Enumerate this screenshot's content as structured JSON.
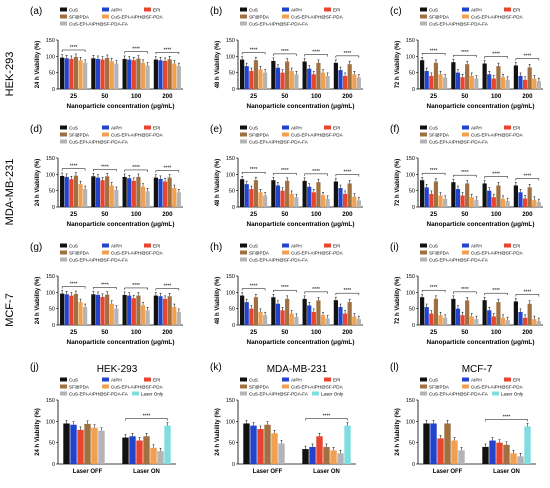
{
  "row_labels": [
    "HEK-293",
    "MDA-MB-231",
    "MCF-7"
  ],
  "colors": {
    "CuS": "#111111",
    "AIPH": "#2244cc",
    "EPI": "#e8442e",
    "SF@PDA": "#a07040",
    "CuS-EPI-AIPH@SF-PDA": "#f0a050",
    "CuS-EPI-AIPH@SF-PDA-FA": "#b4b4b4",
    "Laser Only": "#7fdde0"
  },
  "legend_top": [
    "CuS",
    "AIPH",
    "EPI",
    "SF@PDA",
    "CuS-EPI-AIPH@SF-PDA",
    "CuS-EPI-AIPH@SF-PDA-FA"
  ],
  "legend_bottom": [
    "CuS",
    "AIPH",
    "EPI",
    "SF@PDA",
    "CuS-EPI-AIPH@SF-PDA",
    "CuS-EPI-AIPH@SF-PDA-FA",
    "Laser Only"
  ],
  "chart_data": [
    {
      "panel": "(a)",
      "type": "bar",
      "ylabel": "24 h Viability (%)",
      "xlabel": "Nanoparticle concentration (μg/mL)",
      "ylim": [
        0,
        150
      ],
      "yticks": [
        0,
        50,
        100,
        150
      ],
      "categories": [
        "25",
        "50",
        "100",
        "200"
      ],
      "series": [
        {
          "name": "CuS",
          "values": [
            96,
            94,
            92,
            90
          ]
        },
        {
          "name": "AIPH",
          "values": [
            94,
            92,
            90,
            88
          ]
        },
        {
          "name": "EPI",
          "values": [
            92,
            90,
            88,
            86
          ]
        },
        {
          "name": "SF@PDA",
          "values": [
            98,
            95,
            93,
            91
          ]
        },
        {
          "name": "CuS-EPI-AIPH@SF-PDA",
          "values": [
            88,
            85,
            80,
            78
          ]
        },
        {
          "name": "CuS-EPI-AIPH@SF-PDA-FA",
          "values": [
            80,
            78,
            72,
            70
          ]
        }
      ],
      "sig": [
        [
          0,
          "****"
        ],
        [
          2,
          "****"
        ],
        [
          3,
          "****"
        ]
      ]
    },
    {
      "panel": "(b)",
      "type": "bar",
      "ylabel": "48 h Viability (%)",
      "xlabel": "Nanoparticle concentration (μg/mL)",
      "ylim": [
        0,
        150
      ],
      "yticks": [
        0,
        50,
        100,
        150
      ],
      "categories": [
        "25",
        "50",
        "100",
        "200"
      ],
      "series": [
        {
          "name": "CuS",
          "values": [
            90,
            86,
            84,
            80
          ]
        },
        {
          "name": "AIPH",
          "values": [
            70,
            65,
            62,
            58
          ]
        },
        {
          "name": "EPI",
          "values": [
            55,
            50,
            45,
            40
          ]
        },
        {
          "name": "SF@PDA",
          "values": [
            88,
            84,
            80,
            76
          ]
        },
        {
          "name": "CuS-EPI-AIPH@SF-PDA",
          "values": [
            60,
            55,
            50,
            45
          ]
        },
        {
          "name": "CuS-EPI-AIPH@SF-PDA-FA",
          "values": [
            50,
            45,
            40,
            35
          ]
        }
      ],
      "sig": [
        [
          0,
          "****"
        ],
        [
          1,
          "****"
        ],
        [
          2,
          "****"
        ],
        [
          3,
          "****"
        ]
      ]
    },
    {
      "panel": "(c)",
      "type": "bar",
      "ylabel": "72 h Viability (%)",
      "xlabel": "Nanoparticle concentration (μg/mL)",
      "ylim": [
        0,
        150
      ],
      "yticks": [
        0,
        50,
        100,
        150
      ],
      "categories": [
        "25",
        "50",
        "100",
        "200"
      ],
      "series": [
        {
          "name": "CuS",
          "values": [
            88,
            82,
            78,
            72
          ]
        },
        {
          "name": "AIPH",
          "values": [
            55,
            50,
            45,
            40
          ]
        },
        {
          "name": "EPI",
          "values": [
            40,
            36,
            32,
            28
          ]
        },
        {
          "name": "SF@PDA",
          "values": [
            80,
            76,
            70,
            66
          ]
        },
        {
          "name": "CuS-EPI-AIPH@SF-PDA",
          "values": [
            45,
            40,
            36,
            32
          ]
        },
        {
          "name": "CuS-EPI-AIPH@SF-PDA-FA",
          "values": [
            35,
            32,
            28,
            24
          ]
        }
      ],
      "sig": [
        [
          0,
          "****"
        ],
        [
          1,
          "****"
        ],
        [
          2,
          "****"
        ],
        [
          3,
          "****"
        ]
      ]
    },
    {
      "panel": "(d)",
      "type": "bar",
      "ylabel": "24 h Viability (%)",
      "xlabel": "Nanoparticle concentration (μg/mL)",
      "ylim": [
        0,
        150
      ],
      "yticks": [
        0,
        50,
        100,
        150
      ],
      "categories": [
        "25",
        "50",
        "100",
        "200"
      ],
      "series": [
        {
          "name": "CuS",
          "values": [
            95,
            94,
            92,
            90
          ]
        },
        {
          "name": "AIPH",
          "values": [
            92,
            90,
            88,
            86
          ]
        },
        {
          "name": "EPI",
          "values": [
            85,
            82,
            80,
            78
          ]
        },
        {
          "name": "SF@PDA",
          "values": [
            96,
            94,
            92,
            90
          ]
        },
        {
          "name": "CuS-EPI-AIPH@SF-PDA",
          "values": [
            70,
            66,
            62,
            58
          ]
        },
        {
          "name": "CuS-EPI-AIPH@SF-PDA-FA",
          "values": [
            55,
            52,
            48,
            45
          ]
        }
      ],
      "sig": [
        [
          0,
          "****"
        ],
        [
          1,
          "****"
        ],
        [
          2,
          "****"
        ],
        [
          3,
          "****"
        ]
      ]
    },
    {
      "panel": "(e)",
      "type": "bar",
      "ylabel": "48 h Viability (%)",
      "xlabel": "Nanoparticle concentration (μg/mL)",
      "ylim": [
        0,
        150
      ],
      "yticks": [
        0,
        50,
        100,
        150
      ],
      "categories": [
        "25",
        "50",
        "100",
        "200"
      ],
      "series": [
        {
          "name": "CuS",
          "values": [
            85,
            82,
            80,
            78
          ]
        },
        {
          "name": "AIPH",
          "values": [
            70,
            66,
            62,
            58
          ]
        },
        {
          "name": "EPI",
          "values": [
            55,
            50,
            45,
            40
          ]
        },
        {
          "name": "SF@PDA",
          "values": [
            82,
            80,
            76,
            72
          ]
        },
        {
          "name": "CuS-EPI-AIPH@SF-PDA",
          "values": [
            45,
            40,
            36,
            32
          ]
        },
        {
          "name": "CuS-EPI-AIPH@SF-PDA-FA",
          "values": [
            35,
            30,
            25,
            20
          ]
        }
      ],
      "sig": [
        [
          0,
          "****"
        ],
        [
          1,
          "****"
        ],
        [
          2,
          "****"
        ],
        [
          3,
          "****"
        ]
      ]
    },
    {
      "panel": "(f)",
      "type": "bar",
      "ylabel": "72 h Viability (%)",
      "xlabel": "Nanoparticle concentration (μg/mL)",
      "ylim": [
        0,
        150
      ],
      "yticks": [
        0,
        50,
        100,
        150
      ],
      "categories": [
        "25",
        "50",
        "100",
        "200"
      ],
      "series": [
        {
          "name": "CuS",
          "values": [
            82,
            76,
            72,
            66
          ]
        },
        {
          "name": "AIPH",
          "values": [
            60,
            55,
            50,
            45
          ]
        },
        {
          "name": "EPI",
          "values": [
            40,
            35,
            30,
            26
          ]
        },
        {
          "name": "SF@PDA",
          "values": [
            78,
            72,
            66,
            60
          ]
        },
        {
          "name": "CuS-EPI-AIPH@SF-PDA",
          "values": [
            35,
            30,
            25,
            22
          ]
        },
        {
          "name": "CuS-EPI-AIPH@SF-PDA-FA",
          "values": [
            25,
            22,
            18,
            15
          ]
        }
      ],
      "sig": [
        [
          0,
          "****"
        ],
        [
          1,
          "****"
        ],
        [
          2,
          "****"
        ],
        [
          3,
          "****"
        ]
      ]
    },
    {
      "panel": "(g)",
      "type": "bar",
      "ylabel": "24 h Viability (%)",
      "xlabel": "Nanoparticle concentration (μg/mL)",
      "ylim": [
        0,
        150
      ],
      "yticks": [
        0,
        50,
        100,
        150
      ],
      "categories": [
        "25",
        "50",
        "100",
        "200"
      ],
      "series": [
        {
          "name": "CuS",
          "values": [
            96,
            94,
            92,
            90
          ]
        },
        {
          "name": "AIPH",
          "values": [
            94,
            92,
            90,
            88
          ]
        },
        {
          "name": "EPI",
          "values": [
            90,
            86,
            82,
            80
          ]
        },
        {
          "name": "SF@PDA",
          "values": [
            95,
            93,
            90,
            88
          ]
        },
        {
          "name": "CuS-EPI-AIPH@SF-PDA",
          "values": [
            70,
            65,
            60,
            55
          ]
        },
        {
          "name": "CuS-EPI-AIPH@SF-PDA-FA",
          "values": [
            55,
            50,
            45,
            40
          ]
        }
      ],
      "sig": [
        [
          0,
          "****"
        ],
        [
          1,
          "****"
        ],
        [
          2,
          "****"
        ],
        [
          3,
          "****"
        ]
      ]
    },
    {
      "panel": "(h)",
      "type": "bar",
      "ylabel": "48 h Viability (%)",
      "xlabel": "Nanoparticle concentration (μg/mL)",
      "ylim": [
        0,
        150
      ],
      "yticks": [
        0,
        50,
        100,
        150
      ],
      "categories": [
        "25",
        "50",
        "100",
        "200"
      ],
      "series": [
        {
          "name": "CuS",
          "values": [
            90,
            85,
            80,
            76
          ]
        },
        {
          "name": "AIPH",
          "values": [
            70,
            65,
            60,
            55
          ]
        },
        {
          "name": "EPI",
          "values": [
            50,
            45,
            40,
            35
          ]
        },
        {
          "name": "SF@PDA",
          "values": [
            85,
            80,
            75,
            70
          ]
        },
        {
          "name": "CuS-EPI-AIPH@SF-PDA",
          "values": [
            40,
            35,
            30,
            26
          ]
        },
        {
          "name": "CuS-EPI-AIPH@SF-PDA-FA",
          "values": [
            30,
            25,
            20,
            18
          ]
        }
      ],
      "sig": [
        [
          0,
          "****"
        ],
        [
          1,
          "****"
        ],
        [
          2,
          "****"
        ],
        [
          3,
          "****"
        ]
      ]
    },
    {
      "panel": "(i)",
      "type": "bar",
      "ylabel": "72 h Viability (%)",
      "xlabel": "Nanoparticle concentration (μg/mL)",
      "ylim": [
        0,
        150
      ],
      "yticks": [
        0,
        50,
        100,
        150
      ],
      "categories": [
        "25",
        "50",
        "100",
        "200"
      ],
      "series": [
        {
          "name": "CuS",
          "values": [
            85,
            80,
            76,
            72
          ]
        },
        {
          "name": "AIPH",
          "values": [
            55,
            50,
            45,
            40
          ]
        },
        {
          "name": "EPI",
          "values": [
            35,
            30,
            26,
            22
          ]
        },
        {
          "name": "SF@PDA",
          "values": [
            80,
            75,
            70,
            65
          ]
        },
        {
          "name": "CuS-EPI-AIPH@SF-PDA",
          "values": [
            30,
            26,
            22,
            18
          ]
        },
        {
          "name": "CuS-EPI-AIPH@SF-PDA-FA",
          "values": [
            22,
            18,
            15,
            12
          ]
        }
      ],
      "sig": [
        [
          0,
          "****"
        ],
        [
          1,
          "****"
        ],
        [
          2,
          "****"
        ],
        [
          3,
          "****"
        ]
      ]
    },
    {
      "panel": "(j)",
      "type": "bar",
      "title": "HEK-293",
      "ylabel": "24 h Viability (%)",
      "xlabel": "",
      "ylim": [
        0,
        150
      ],
      "yticks": [
        0,
        50,
        100,
        150
      ],
      "categories": [
        "Laser OFF",
        "Laser ON"
      ],
      "series": [
        {
          "name": "CuS",
          "values": [
            95,
            62
          ]
        },
        {
          "name": "AIPH",
          "values": [
            92,
            65
          ]
        },
        {
          "name": "EPI",
          "values": [
            80,
            55
          ]
        },
        {
          "name": "SF@PDA",
          "values": [
            94,
            65
          ]
        },
        {
          "name": "CuS-EPI-AIPH@SF-PDA",
          "values": [
            85,
            38
          ]
        },
        {
          "name": "CuS-EPI-AIPH@SF-PDA-FA",
          "values": [
            78,
            30
          ]
        },
        {
          "name": "Laser Only",
          "values": [
            0,
            90
          ]
        }
      ],
      "sig": [
        [
          1,
          "****"
        ]
      ]
    },
    {
      "panel": "(k)",
      "type": "bar",
      "title": "MDA-MB-231",
      "ylabel": "24 h Viability (%)",
      "xlabel": "",
      "ylim": [
        0,
        150
      ],
      "yticks": [
        0,
        50,
        100,
        150
      ],
      "categories": [
        "Laser OFF",
        "Laser ON"
      ],
      "series": [
        {
          "name": "CuS",
          "values": [
            95,
            35
          ]
        },
        {
          "name": "AIPH",
          "values": [
            90,
            40
          ]
        },
        {
          "name": "EPI",
          "values": [
            82,
            65
          ]
        },
        {
          "name": "SF@PDA",
          "values": [
            92,
            40
          ]
        },
        {
          "name": "CuS-EPI-AIPH@SF-PDA",
          "values": [
            72,
            32
          ]
        },
        {
          "name": "CuS-EPI-AIPH@SF-PDA-FA",
          "values": [
            48,
            25
          ]
        },
        {
          "name": "Laser Only",
          "values": [
            0,
            90
          ]
        }
      ],
      "sig": [
        [
          1,
          "****"
        ]
      ]
    },
    {
      "panel": "(l)",
      "type": "bar",
      "title": "MCF-7",
      "ylabel": "24 h Viability (%)",
      "xlabel": "",
      "ylim": [
        0,
        150
      ],
      "yticks": [
        0,
        50,
        100,
        150
      ],
      "categories": [
        "Laser OFF",
        "Laser ON"
      ],
      "series": [
        {
          "name": "CuS",
          "values": [
            95,
            40
          ]
        },
        {
          "name": "AIPH",
          "values": [
            95,
            55
          ]
        },
        {
          "name": "EPI",
          "values": [
            60,
            50
          ]
        },
        {
          "name": "SF@PDA",
          "values": [
            95,
            45
          ]
        },
        {
          "name": "CuS-EPI-AIPH@SF-PDA",
          "values": [
            55,
            25
          ]
        },
        {
          "name": "CuS-EPI-AIPH@SF-PDA-FA",
          "values": [
            32,
            18
          ]
        },
        {
          "name": "Laser Only",
          "values": [
            0,
            88
          ]
        }
      ],
      "sig": [
        [
          1,
          "****"
        ]
      ]
    }
  ]
}
